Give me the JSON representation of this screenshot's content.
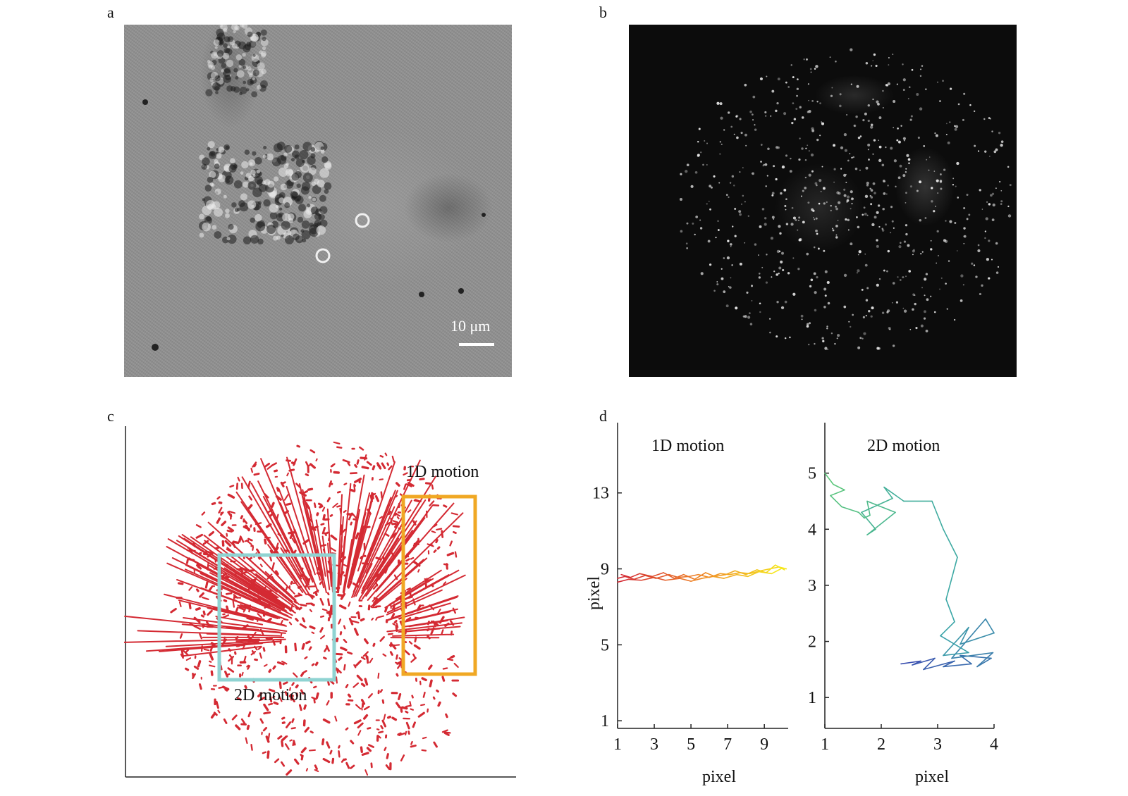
{
  "panels": {
    "a": {
      "letter": "a",
      "scalebar_label": "10 μm"
    },
    "b": {
      "letter": "b"
    },
    "c": {
      "letter": "c",
      "box_labels": {
        "one_d": "1D motion",
        "two_d": "2D motion"
      },
      "colors": {
        "tracks": "#d42a33",
        "box_1d": "#f0a824",
        "box_2d": "#8fd3d2"
      }
    },
    "d": {
      "letter": "d"
    }
  },
  "chart_data": [
    {
      "type": "line",
      "title": "1D motion",
      "xlabel": "pixel",
      "ylabel": "pixel",
      "xticks": [
        1,
        3,
        5,
        7,
        9
      ],
      "yticks": [
        1,
        5,
        9,
        13
      ],
      "xlim": [
        1,
        10.3
      ],
      "ylim": [
        0.6,
        16.7
      ],
      "colormap": [
        "#d42a33",
        "#f08a24",
        "#f5e61a"
      ],
      "series": [
        {
          "x": [
            1.0,
            1.4,
            1.9,
            2.5,
            3.1,
            3.8,
            4.3,
            4.9,
            5.4,
            6.0,
            6.6,
            7.1,
            7.7,
            8.2,
            8.8,
            9.3,
            9.8,
            10.2
          ],
          "y": [
            8.5,
            8.6,
            8.45,
            8.65,
            8.5,
            8.7,
            8.55,
            8.6,
            8.7,
            8.55,
            8.75,
            8.7,
            8.8,
            8.75,
            8.9,
            9.0,
            9.1,
            9.0
          ]
        },
        {
          "x": [
            1.2,
            1.7,
            2.2,
            2.9,
            3.5,
            4.1,
            4.6,
            5.2,
            5.8,
            6.3,
            6.9,
            7.4,
            8.0,
            8.6,
            9.1,
            9.6,
            10.1
          ],
          "y": [
            8.7,
            8.55,
            8.75,
            8.6,
            8.8,
            8.5,
            8.7,
            8.45,
            8.8,
            8.6,
            8.7,
            8.9,
            8.7,
            8.95,
            8.8,
            9.2,
            8.95
          ]
        },
        {
          "x": [
            1.0,
            1.6,
            2.3,
            3.0,
            3.6,
            4.4,
            5.0,
            5.6,
            6.2,
            6.8,
            7.5,
            8.1,
            8.7,
            9.4,
            10.0
          ],
          "y": [
            8.3,
            8.45,
            8.4,
            8.55,
            8.4,
            8.5,
            8.35,
            8.5,
            8.6,
            8.5,
            8.7,
            8.6,
            8.85,
            8.75,
            9.05
          ]
        }
      ]
    },
    {
      "type": "line",
      "title": "2D motion",
      "xlabel": "pixel",
      "ylabel": "",
      "xticks": [
        1,
        2,
        3,
        4
      ],
      "yticks": [
        1,
        2,
        3,
        4,
        5
      ],
      "xlim": [
        1,
        4
      ],
      "ylim": [
        0.45,
        5.9
      ],
      "colormap": [
        "#3a4fb0",
        "#3aa6a8",
        "#5cc77a"
      ],
      "series": [
        {
          "x": [
            2.35,
            2.7,
            2.55,
            2.95,
            2.75,
            3.3,
            3.1,
            3.6,
            3.4,
            3.95,
            3.7,
            3.98,
            3.25,
            3.85,
            4.0,
            3.4,
            3.55,
            3.1,
            3.55,
            3.05,
            3.3,
            3.15,
            3.35,
            3.1,
            2.9,
            2.4,
            2.05,
            2.2,
            1.65,
            1.9,
            1.75,
            2.25,
            1.75,
            1.8,
            1.7,
            1.6,
            1.3,
            1.1,
            1.35,
            1.15,
            1.0
          ],
          "y": [
            1.6,
            1.65,
            1.58,
            1.7,
            1.5,
            1.65,
            1.55,
            1.6,
            1.75,
            1.7,
            1.55,
            1.8,
            1.7,
            2.4,
            2.15,
            1.95,
            2.25,
            1.75,
            1.8,
            2.1,
            2.35,
            2.75,
            3.5,
            4.0,
            4.5,
            4.5,
            4.75,
            4.55,
            4.3,
            4.0,
            3.9,
            4.3,
            4.5,
            4.25,
            4.2,
            4.3,
            4.4,
            4.6,
            4.7,
            4.8,
            5.0
          ]
        }
      ]
    }
  ]
}
